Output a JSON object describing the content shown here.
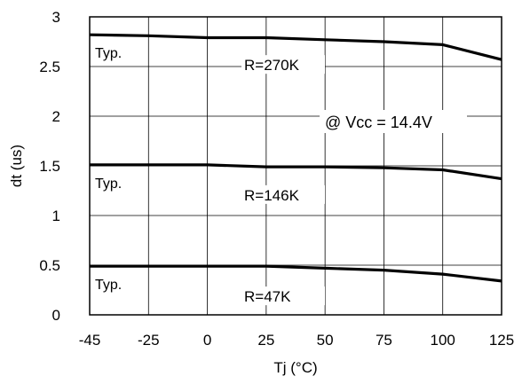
{
  "chart_data": {
    "type": "line",
    "title": "",
    "xlabel": "Tj (°C)",
    "ylabel": "dt (us)",
    "xlim": [
      -45,
      125
    ],
    "ylim": [
      0,
      3
    ],
    "x_ticks": [
      -45,
      -25,
      0,
      25,
      50,
      75,
      100,
      125
    ],
    "y_ticks": [
      0,
      0.5,
      1,
      1.5,
      2,
      2.5,
      3
    ],
    "y_tick_labels": [
      "0",
      "0.5",
      "1",
      "1.5",
      "2",
      "2.5",
      "3"
    ],
    "grid": true,
    "annotation": "@ Vcc = 14.4V",
    "series": [
      {
        "name": "R=270K",
        "tag": "Typ.",
        "x": [
          -45,
          -25,
          0,
          25,
          50,
          75,
          100,
          125
        ],
        "values": [
          2.82,
          2.81,
          2.79,
          2.79,
          2.77,
          2.75,
          2.72,
          2.57
        ]
      },
      {
        "name": "R=146K",
        "tag": "Typ.",
        "x": [
          -45,
          -25,
          0,
          25,
          50,
          75,
          100,
          125
        ],
        "values": [
          1.51,
          1.51,
          1.51,
          1.49,
          1.49,
          1.48,
          1.46,
          1.37
        ]
      },
      {
        "name": "R=47K",
        "tag": "Typ.",
        "x": [
          -45,
          -25,
          0,
          25,
          50,
          75,
          100,
          125
        ],
        "values": [
          0.49,
          0.49,
          0.49,
          0.49,
          0.47,
          0.45,
          0.41,
          0.34
        ]
      }
    ]
  }
}
